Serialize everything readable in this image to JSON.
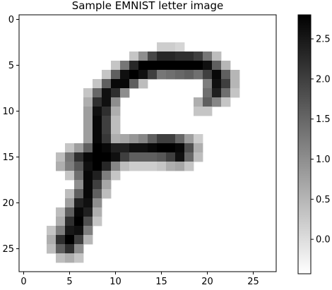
{
  "chart_data": {
    "type": "heatmap",
    "title": "Sample EMNIST letter image",
    "xlabel": "",
    "ylabel": "",
    "colormap": "gray_r",
    "x_ticks": [
      "0",
      "5",
      "10",
      "15",
      "20",
      "25"
    ],
    "y_ticks": [
      "0",
      "5",
      "10",
      "15",
      "20",
      "25"
    ],
    "xlim": [
      -0.5,
      27.5
    ],
    "ylim": [
      27.5,
      -0.5
    ],
    "colorbar": {
      "range": [
        -0.43,
        2.8
      ],
      "ticks": [
        "0.0",
        "0.5",
        "1.0",
        "1.5",
        "2.0",
        "2.5"
      ],
      "tick_values": [
        0.0,
        0.5,
        1.0,
        1.5,
        2.0,
        2.5
      ]
    },
    "grid": false,
    "pixels": [
      [
        3,
        15,
        0.2
      ],
      [
        3,
        16,
        0.2
      ],
      [
        3,
        17,
        0.1
      ],
      [
        4,
        12,
        0.3
      ],
      [
        4,
        13,
        1.0
      ],
      [
        4,
        14,
        1.9
      ],
      [
        4,
        15,
        2.3
      ],
      [
        4,
        16,
        2.3
      ],
      [
        4,
        17,
        2.2
      ],
      [
        4,
        18,
        2.2
      ],
      [
        4,
        19,
        2.0
      ],
      [
        4,
        20,
        1.3
      ],
      [
        4,
        21,
        0.4
      ],
      [
        5,
        10,
        0.3
      ],
      [
        5,
        11,
        1.3
      ],
      [
        5,
        12,
        2.3
      ],
      [
        5,
        13,
        2.8
      ],
      [
        5,
        14,
        2.8
      ],
      [
        5,
        15,
        2.8
      ],
      [
        5,
        16,
        2.8
      ],
      [
        5,
        17,
        2.8
      ],
      [
        5,
        18,
        2.8
      ],
      [
        5,
        19,
        2.8
      ],
      [
        5,
        20,
        2.6
      ],
      [
        5,
        21,
        1.6
      ],
      [
        5,
        22,
        0.5
      ],
      [
        6,
        9,
        0.3
      ],
      [
        6,
        10,
        1.6
      ],
      [
        6,
        11,
        2.6
      ],
      [
        6,
        12,
        2.8
      ],
      [
        6,
        13,
        2.6
      ],
      [
        6,
        14,
        2.0
      ],
      [
        6,
        15,
        1.3
      ],
      [
        6,
        16,
        1.4
      ],
      [
        6,
        17,
        1.5
      ],
      [
        6,
        18,
        1.6
      ],
      [
        6,
        19,
        1.4
      ],
      [
        6,
        20,
        2.0
      ],
      [
        6,
        21,
        2.7
      ],
      [
        6,
        22,
        1.6
      ],
      [
        6,
        23,
        0.5
      ],
      [
        7,
        8,
        0.3
      ],
      [
        7,
        9,
        1.6
      ],
      [
        7,
        10,
        2.7
      ],
      [
        7,
        11,
        2.7
      ],
      [
        7,
        12,
        1.6
      ],
      [
        7,
        13,
        0.4
      ],
      [
        7,
        20,
        1.2
      ],
      [
        7,
        21,
        2.6
      ],
      [
        7,
        22,
        2.0
      ],
      [
        7,
        23,
        0.5
      ],
      [
        8,
        7,
        0.3
      ],
      [
        8,
        8,
        1.5
      ],
      [
        8,
        9,
        2.6
      ],
      [
        8,
        10,
        2.2
      ],
      [
        8,
        11,
        1.0
      ],
      [
        8,
        20,
        1.4
      ],
      [
        8,
        21,
        2.4
      ],
      [
        8,
        22,
        1.4
      ],
      [
        8,
        23,
        0.3
      ],
      [
        9,
        7,
        0.6
      ],
      [
        9,
        8,
        2.2
      ],
      [
        9,
        9,
        2.6
      ],
      [
        9,
        10,
        1.0
      ],
      [
        9,
        19,
        0.6
      ],
      [
        9,
        20,
        1.6
      ],
      [
        9,
        21,
        1.1
      ],
      [
        9,
        22,
        0.3
      ],
      [
        10,
        7,
        0.8
      ],
      [
        10,
        8,
        2.6
      ],
      [
        10,
        9,
        2.2
      ],
      [
        10,
        10,
        0.6
      ],
      [
        10,
        19,
        0.3
      ],
      [
        10,
        20,
        0.3
      ],
      [
        11,
        7,
        0.8
      ],
      [
        11,
        8,
        2.7
      ],
      [
        11,
        9,
        2.0
      ],
      [
        11,
        10,
        0.4
      ],
      [
        12,
        7,
        0.8
      ],
      [
        12,
        8,
        2.7
      ],
      [
        12,
        9,
        2.0
      ],
      [
        12,
        10,
        0.4
      ],
      [
        13,
        7,
        0.8
      ],
      [
        13,
        8,
        2.7
      ],
      [
        13,
        9,
        2.1
      ],
      [
        13,
        10,
        0.6
      ],
      [
        13,
        11,
        0.7
      ],
      [
        13,
        12,
        0.9
      ],
      [
        13,
        13,
        1.1
      ],
      [
        13,
        14,
        1.6
      ],
      [
        13,
        15,
        2.0
      ],
      [
        13,
        16,
        2.0
      ],
      [
        13,
        17,
        1.5
      ],
      [
        13,
        18,
        0.8
      ],
      [
        13,
        19,
        0.2
      ],
      [
        14,
        5,
        0.3
      ],
      [
        14,
        6,
        0.8
      ],
      [
        14,
        7,
        1.6
      ],
      [
        14,
        8,
        2.8
      ],
      [
        14,
        9,
        2.7
      ],
      [
        14,
        10,
        2.4
      ],
      [
        14,
        11,
        2.4
      ],
      [
        14,
        12,
        2.6
      ],
      [
        14,
        13,
        2.6
      ],
      [
        14,
        14,
        2.7
      ],
      [
        14,
        15,
        2.8
      ],
      [
        14,
        16,
        2.8
      ],
      [
        14,
        17,
        2.7
      ],
      [
        14,
        18,
        1.8
      ],
      [
        14,
        19,
        0.6
      ],
      [
        15,
        4,
        0.4
      ],
      [
        15,
        5,
        1.3
      ],
      [
        15,
        6,
        2.2
      ],
      [
        15,
        7,
        2.7
      ],
      [
        15,
        8,
        2.8
      ],
      [
        15,
        9,
        2.8
      ],
      [
        15,
        10,
        2.6
      ],
      [
        15,
        11,
        2.0
      ],
      [
        15,
        12,
        1.6
      ],
      [
        15,
        13,
        1.6
      ],
      [
        15,
        14,
        1.6
      ],
      [
        15,
        15,
        1.7
      ],
      [
        15,
        16,
        2.0
      ],
      [
        15,
        17,
        2.6
      ],
      [
        15,
        18,
        1.5
      ],
      [
        15,
        19,
        0.4
      ],
      [
        16,
        4,
        0.6
      ],
      [
        16,
        5,
        1.2
      ],
      [
        16,
        6,
        1.7
      ],
      [
        16,
        7,
        2.6
      ],
      [
        16,
        8,
        2.8
      ],
      [
        16,
        9,
        2.3
      ],
      [
        16,
        10,
        1.1
      ],
      [
        16,
        11,
        0.4
      ],
      [
        16,
        12,
        0.2
      ],
      [
        16,
        13,
        0.2
      ],
      [
        16,
        14,
        0.2
      ],
      [
        16,
        15,
        0.3
      ],
      [
        16,
        16,
        0.6
      ],
      [
        16,
        17,
        0.7
      ],
      [
        16,
        18,
        0.3
      ],
      [
        17,
        5,
        0.3
      ],
      [
        17,
        6,
        1.4
      ],
      [
        17,
        7,
        2.7
      ],
      [
        17,
        8,
        2.4
      ],
      [
        17,
        9,
        1.2
      ],
      [
        17,
        10,
        0.3
      ],
      [
        18,
        6,
        1.0
      ],
      [
        18,
        7,
        2.7
      ],
      [
        18,
        8,
        2.0
      ],
      [
        18,
        9,
        0.7
      ],
      [
        19,
        5,
        0.4
      ],
      [
        19,
        6,
        1.6
      ],
      [
        19,
        7,
        2.7
      ],
      [
        19,
        8,
        1.6
      ],
      [
        19,
        9,
        0.4
      ],
      [
        20,
        5,
        0.8
      ],
      [
        20,
        6,
        2.4
      ],
      [
        20,
        7,
        2.6
      ],
      [
        20,
        8,
        1.0
      ],
      [
        21,
        4,
        0.4
      ],
      [
        21,
        5,
        1.6
      ],
      [
        21,
        6,
        2.7
      ],
      [
        21,
        7,
        2.4
      ],
      [
        21,
        8,
        0.6
      ],
      [
        22,
        4,
        0.6
      ],
      [
        22,
        5,
        2.2
      ],
      [
        22,
        6,
        2.8
      ],
      [
        22,
        7,
        1.8
      ],
      [
        22,
        8,
        0.3
      ],
      [
        23,
        3,
        0.3
      ],
      [
        23,
        4,
        1.2
      ],
      [
        23,
        5,
        2.5
      ],
      [
        23,
        6,
        2.6
      ],
      [
        23,
        7,
        1.2
      ],
      [
        24,
        3,
        0.6
      ],
      [
        24,
        4,
        2.2
      ],
      [
        24,
        5,
        2.8
      ],
      [
        24,
        6,
        2.0
      ],
      [
        24,
        7,
        0.5
      ],
      [
        25,
        3,
        0.4
      ],
      [
        25,
        4,
        1.6
      ],
      [
        25,
        5,
        2.2
      ],
      [
        25,
        6,
        1.0
      ],
      [
        26,
        4,
        0.4
      ],
      [
        26,
        5,
        0.6
      ],
      [
        26,
        6,
        0.3
      ]
    ]
  }
}
